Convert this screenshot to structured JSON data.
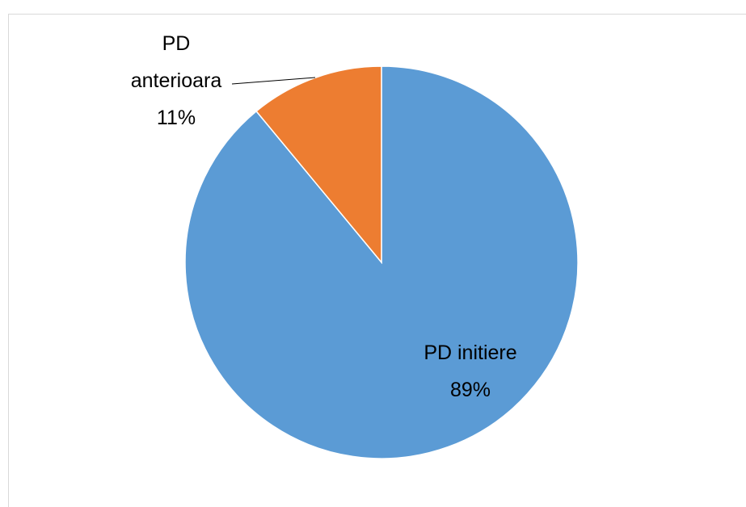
{
  "chart_data": {
    "type": "pie",
    "categories": [
      "PD initiere",
      "PD anterioara"
    ],
    "values": [
      89,
      11
    ],
    "value_labels": [
      "89%",
      "11%"
    ],
    "colors": [
      "#5b9bd5",
      "#ed7d31"
    ]
  }
}
